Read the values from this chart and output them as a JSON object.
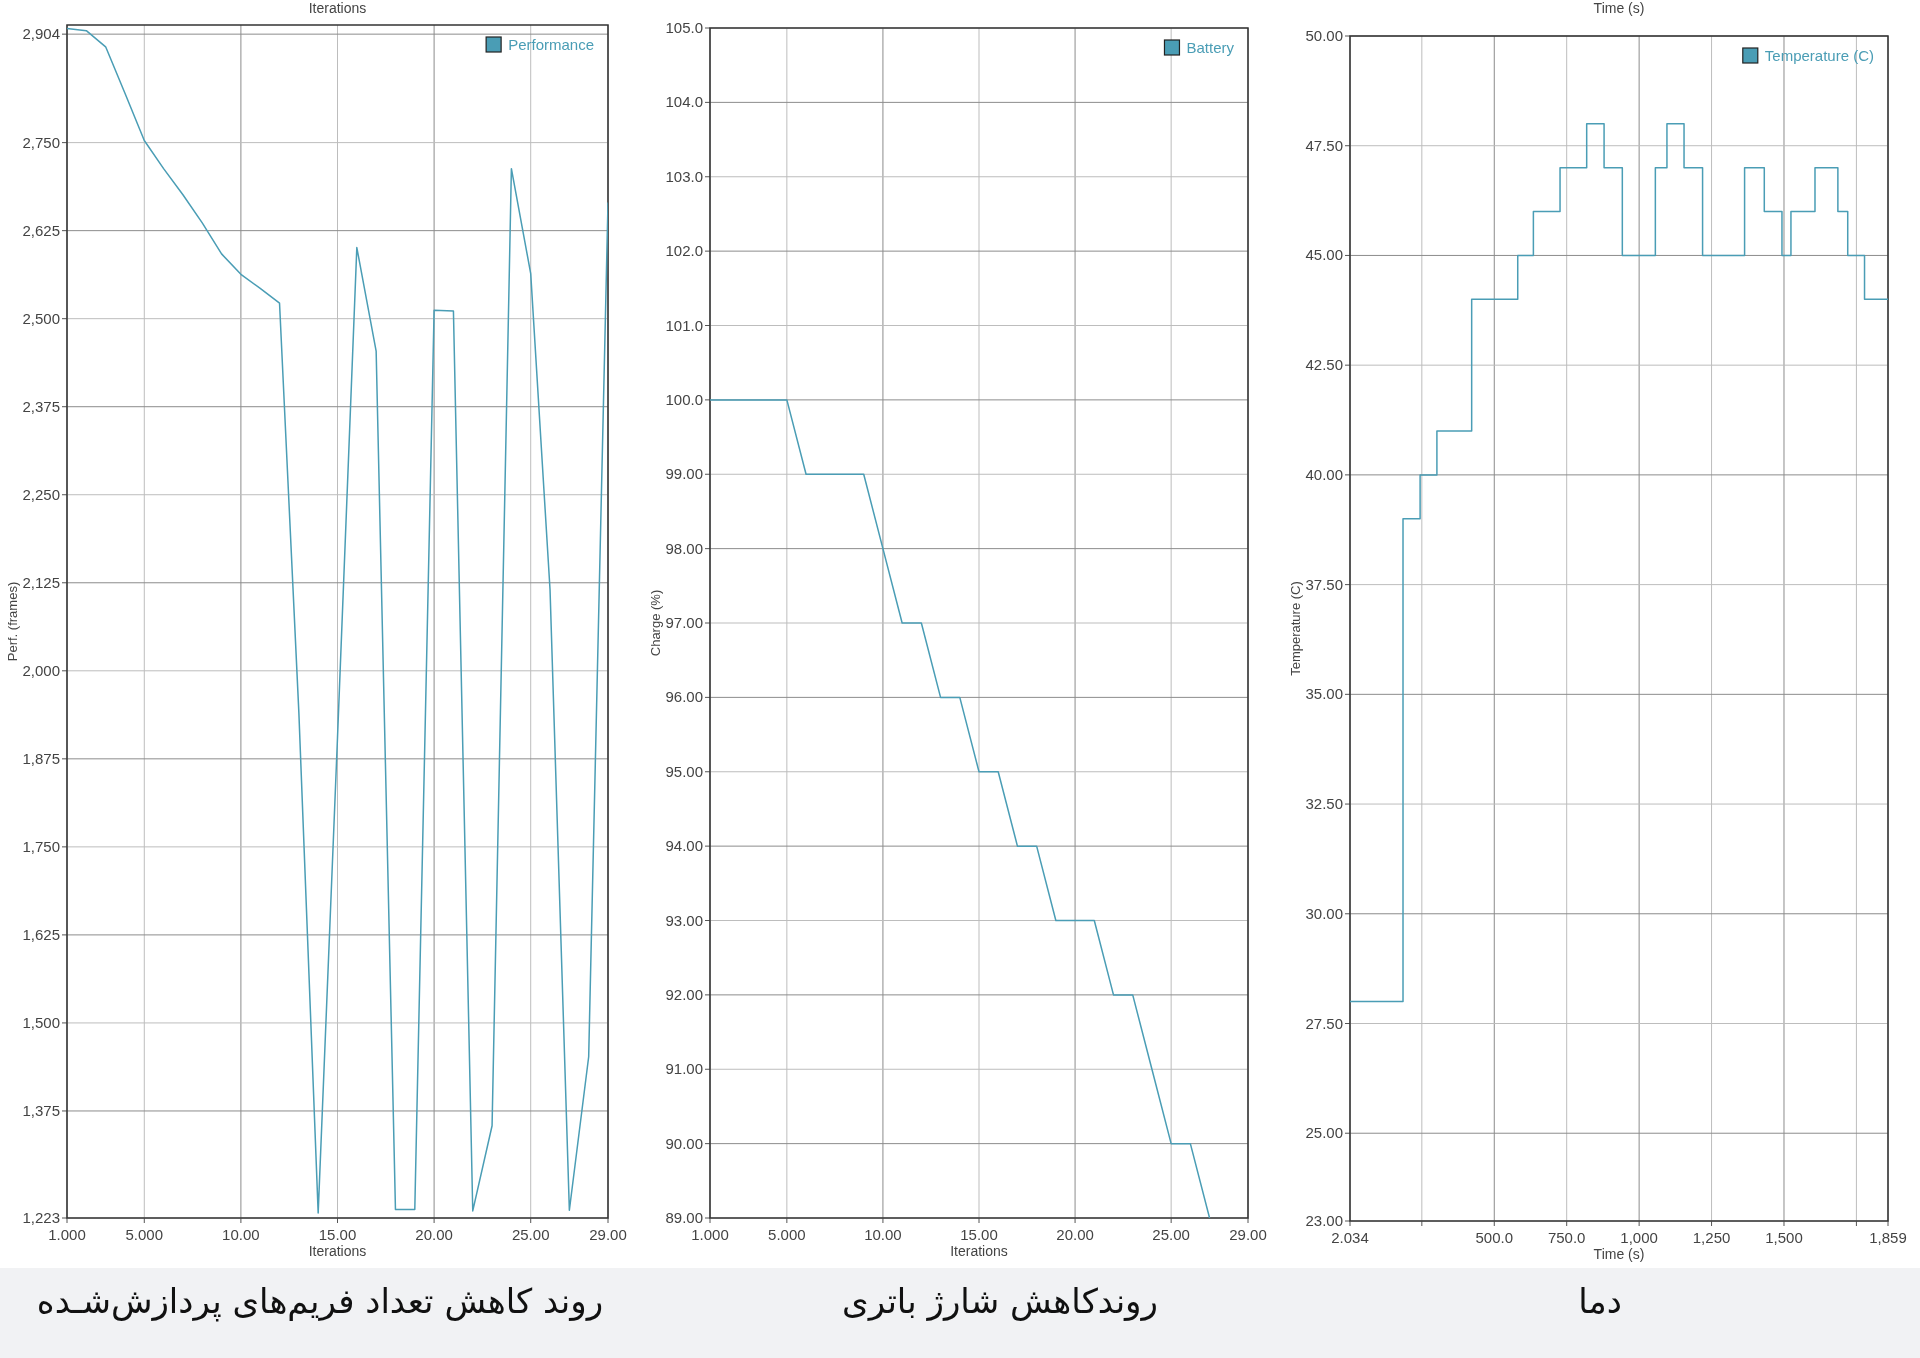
{
  "chart_data": [
    {
      "type": "line",
      "title": "روند کاهش تعداد فریم‌های پردازش‌شـده",
      "xlabel": "Iterations",
      "ylabel": "Perf. (frames)",
      "annotations": [
        "Iterations"
      ],
      "x": [
        1,
        2,
        3,
        4,
        5,
        6,
        7,
        8,
        9,
        10,
        11,
        12,
        13,
        14,
        15,
        16,
        17,
        18,
        19,
        20,
        21,
        22,
        23,
        24,
        25,
        26,
        27,
        28,
        29
      ],
      "series": [
        {
          "name": "Performance",
          "color": "#4a9db5",
          "values": [
            2912,
            2909,
            2886,
            2820,
            2753,
            2713,
            2676,
            2636,
            2592,
            2563,
            2543,
            2522,
            1941,
            1230,
            1905,
            2601,
            2454,
            1235,
            1235,
            2512,
            2511,
            1233,
            1354,
            2713,
            2564,
            2115,
            1234,
            1452,
            2665
          ]
        }
      ],
      "xlim": [
        1,
        29
      ],
      "xticks": [
        {
          "value": 1,
          "label": "1.000"
        },
        {
          "value": 5,
          "label": "5.000"
        },
        {
          "value": 10,
          "label": "10.00"
        },
        {
          "value": 15,
          "label": "15.00"
        },
        {
          "value": 20,
          "label": "20.00"
        },
        {
          "value": 25,
          "label": "25.00"
        },
        {
          "value": 29,
          "label": "29.00"
        }
      ],
      "ylim": [
        1223,
        2917
      ],
      "yticks": [
        {
          "value": 1223,
          "label": "1,223"
        },
        {
          "value": 1375,
          "label": "1,375"
        },
        {
          "value": 1500,
          "label": "1,500"
        },
        {
          "value": 1625,
          "label": "1,625"
        },
        {
          "value": 1750,
          "label": "1,750"
        },
        {
          "value": 1875,
          "label": "1,875"
        },
        {
          "value": 2000,
          "label": "2,000"
        },
        {
          "value": 2125,
          "label": "2,125"
        },
        {
          "value": 2250,
          "label": "2,250"
        },
        {
          "value": 2375,
          "label": "2,375"
        },
        {
          "value": 2500,
          "label": "2,500"
        },
        {
          "value": 2625,
          "label": "2,625"
        },
        {
          "value": 2750,
          "label": "2,750"
        },
        {
          "value": 2904,
          "label": "2,904"
        }
      ],
      "grid": true,
      "legend": "top right"
    },
    {
      "type": "line",
      "title": "روندکاهش شارژ باتری",
      "xlabel": "Iterations",
      "ylabel": "Charge (%)",
      "x": [
        1,
        2,
        3,
        4,
        5,
        6,
        7,
        8,
        9,
        10,
        11,
        12,
        13,
        14,
        15,
        16,
        17,
        18,
        19,
        20,
        21,
        22,
        23,
        24,
        25,
        26,
        27
      ],
      "series": [
        {
          "name": "Battery",
          "color": "#4a9db5",
          "values": [
            100,
            100,
            100,
            100,
            100,
            99,
            99,
            99,
            99,
            98,
            97,
            97,
            96,
            96,
            95,
            95,
            94,
            94,
            93,
            93,
            93,
            92,
            92,
            91,
            90,
            90,
            89
          ]
        }
      ],
      "xlim": [
        1,
        29
      ],
      "xticks": [
        {
          "value": 1,
          "label": "1.000"
        },
        {
          "value": 5,
          "label": "5.000"
        },
        {
          "value": 10,
          "label": "10.00"
        },
        {
          "value": 15,
          "label": "15.00"
        },
        {
          "value": 20,
          "label": "20.00"
        },
        {
          "value": 25,
          "label": "25.00"
        },
        {
          "value": 29,
          "label": "29.00"
        }
      ],
      "ylim": [
        89,
        105
      ],
      "yticks": [
        {
          "value": 89,
          "label": "89.00"
        },
        {
          "value": 90,
          "label": "90.00"
        },
        {
          "value": 91,
          "label": "91.00"
        },
        {
          "value": 92,
          "label": "92.00"
        },
        {
          "value": 93,
          "label": "93.00"
        },
        {
          "value": 94,
          "label": "94.00"
        },
        {
          "value": 95,
          "label": "95.00"
        },
        {
          "value": 96,
          "label": "96.00"
        },
        {
          "value": 97,
          "label": "97.00"
        },
        {
          "value": 98,
          "label": "98.00"
        },
        {
          "value": 99,
          "label": "99.00"
        },
        {
          "value": 100,
          "label": "100.0"
        },
        {
          "value": 101,
          "label": "101.0"
        },
        {
          "value": 102,
          "label": "102.0"
        },
        {
          "value": 103,
          "label": "103.0"
        },
        {
          "value": 104,
          "label": "104.0"
        },
        {
          "value": 105,
          "label": "105.0"
        }
      ],
      "grid": true,
      "legend": "top right"
    },
    {
      "type": "step",
      "title": "دما",
      "xlabel": "Time (s)",
      "ylabel": "Temperature (C)",
      "annotations": [
        "Time (s)"
      ],
      "x": [
        2.034,
        185,
        244,
        302,
        422,
        581,
        635,
        727,
        819,
        879,
        942,
        1056,
        1096,
        1155,
        1219,
        1364,
        1432,
        1493,
        1524,
        1607,
        1686,
        1720,
        1778,
        1859
      ],
      "series": [
        {
          "name": "Temperature (C)",
          "color": "#4a9db5",
          "values": [
            28,
            39,
            40,
            41,
            44,
            45,
            46,
            47,
            48,
            47,
            45,
            47,
            48,
            47,
            45,
            47,
            46,
            45,
            46,
            47,
            46,
            45,
            44,
            44
          ]
        }
      ],
      "xlim": [
        2.034,
        1859
      ],
      "xticks": [
        2.034,
        {
          "value": 250,
          "label": null
        },
        {
          "value": 500,
          "label": "500.0"
        },
        {
          "value": 750,
          "label": "750.0"
        },
        {
          "value": 1000,
          "label": "1,000"
        },
        {
          "value": 1250,
          "label": "1,250"
        },
        {
          "value": 1500,
          "label": "1,500"
        },
        {
          "value": 1750,
          "label": null
        },
        {
          "value": 1859,
          "label": "1,859"
        }
      ],
      "ylim": [
        23,
        50
      ],
      "yticks": [
        {
          "value": 23,
          "label": "23.00"
        },
        {
          "value": 25,
          "label": "25.00"
        },
        {
          "value": 27.5,
          "label": "27.50"
        },
        {
          "value": 30,
          "label": "30.00"
        },
        {
          "value": 32.5,
          "label": "32.50"
        },
        {
          "value": 35,
          "label": "35.00"
        },
        {
          "value": 37.5,
          "label": "37.50"
        },
        {
          "value": 40,
          "label": "40.00"
        },
        {
          "value": 42.5,
          "label": "42.50"
        },
        {
          "value": 45,
          "label": "45.00"
        },
        {
          "value": 47.5,
          "label": "47.50"
        },
        {
          "value": 50,
          "label": "50.00"
        }
      ],
      "grid": true,
      "legend": "top right"
    }
  ]
}
